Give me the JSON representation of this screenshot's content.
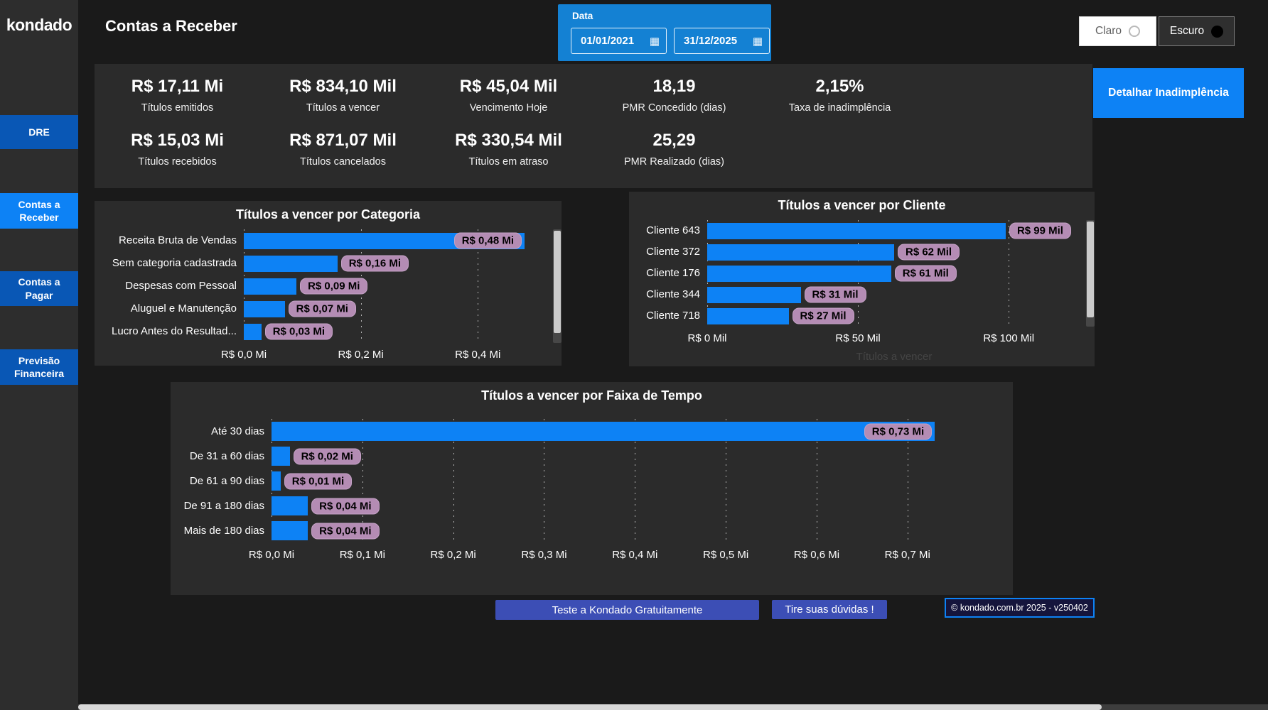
{
  "colors": {
    "accent": "#0d82f5",
    "navblue": "#0957b5",
    "slicerblue": "#1481d3",
    "pill": "#b48cb4",
    "indigo": "#3c4eb5"
  },
  "sidebar": {
    "logo": "kondado",
    "items": [
      {
        "label": "DRE",
        "active": false
      },
      {
        "label": "Contas a Receber",
        "active": true
      },
      {
        "label": "Contas a Pagar",
        "active": false
      },
      {
        "label": "Previsão Financeira",
        "active": false
      }
    ]
  },
  "header": {
    "title": "Contas a Receber",
    "date_slicer": {
      "label": "Data",
      "start": "01/01/2021",
      "end": "31/12/2025",
      "calendar_icon": "▦"
    },
    "theme_toggle": {
      "light": "Claro",
      "dark": "Escuro"
    }
  },
  "kpis": {
    "row1": [
      {
        "value": "R$ 17,11 Mi",
        "label": "Títulos emitidos"
      },
      {
        "value": "R$ 834,10 Mil",
        "label": "Títulos a vencer"
      },
      {
        "value": "R$ 45,04 Mil",
        "label": "Vencimento Hoje"
      },
      {
        "value": "18,19",
        "label": "PMR Concedido (dias)"
      },
      {
        "value": "2,15%",
        "label": "Taxa de inadimplência"
      }
    ],
    "row2": [
      {
        "value": "R$ 15,03 Mi",
        "label": "Títulos recebidos"
      },
      {
        "value": "R$ 871,07 Mil",
        "label": "Títulos cancelados"
      },
      {
        "value": "R$ 330,54 Mil",
        "label": "Títulos em atraso"
      },
      {
        "value": "25,29",
        "label": "PMR Realizado (dias)"
      }
    ],
    "detail_button": "Detalhar Inadimplência"
  },
  "chart_data": [
    {
      "type": "bar",
      "orientation": "horizontal",
      "title": "Títulos a vencer por Categoria",
      "categories": [
        "Receita Bruta de Vendas",
        "Sem categoria cadastrada",
        "Despesas com Pessoal",
        "Aluguel e Manutenção",
        "Lucro Antes do Resultad..."
      ],
      "values": [
        0.48,
        0.16,
        0.09,
        0.07,
        0.03
      ],
      "value_labels": [
        "R$ 0,48 Mi",
        "R$ 0,16 Mi",
        "R$ 0,09 Mi",
        "R$ 0,07 Mi",
        "R$ 0,03 Mi"
      ],
      "unit": "Mi",
      "x_ticks": [
        {
          "value": 0.0,
          "label": "R$ 0,0 Mi"
        },
        {
          "value": 0.2,
          "label": "R$ 0,2 Mi"
        },
        {
          "value": 0.4,
          "label": "R$ 0,4 Mi"
        }
      ],
      "axis_max": 0.52,
      "grid": true,
      "has_scrollbar": true
    },
    {
      "type": "bar",
      "orientation": "horizontal",
      "title": "Títulos a vencer por Cliente",
      "categories": [
        "Cliente 643",
        "Cliente 372",
        "Cliente 176",
        "Cliente 344",
        "Cliente 718"
      ],
      "values": [
        99,
        62,
        61,
        31,
        27
      ],
      "value_labels": [
        "R$ 99 Mil",
        "R$ 62 Mil",
        "R$ 61 Mil",
        "R$ 31 Mil",
        "R$ 27 Mil"
      ],
      "unit": "Mil",
      "x_ticks": [
        {
          "value": 0,
          "label": "R$ 0 Mil"
        },
        {
          "value": 50,
          "label": "R$ 50 Mil"
        },
        {
          "value": 100,
          "label": "R$ 100 Mil"
        }
      ],
      "axis_max": 124,
      "axis_title": "Títulos a vencer",
      "grid": true,
      "has_scrollbar": true
    },
    {
      "type": "bar",
      "orientation": "horizontal",
      "title": "Títulos a vencer por Faixa de Tempo",
      "categories": [
        "Até 30 dias",
        "De 31 a 60 dias",
        "De 61 a 90 dias",
        "De 91 a 180 dias",
        "Mais de 180 dias"
      ],
      "values": [
        0.73,
        0.02,
        0.01,
        0.04,
        0.04
      ],
      "value_labels": [
        "R$ 0,73 Mi",
        "R$ 0,02 Mi",
        "R$ 0,01 Mi",
        "R$ 0,04 Mi",
        "R$ 0,04 Mi"
      ],
      "unit": "Mi",
      "x_ticks": [
        {
          "value": 0.0,
          "label": "R$ 0,0 Mi"
        },
        {
          "value": 0.1,
          "label": "R$ 0,1 Mi"
        },
        {
          "value": 0.2,
          "label": "R$ 0,2 Mi"
        },
        {
          "value": 0.3,
          "label": "R$ 0,3 Mi"
        },
        {
          "value": 0.4,
          "label": "R$ 0,4 Mi"
        },
        {
          "value": 0.5,
          "label": "R$ 0,5 Mi"
        },
        {
          "value": 0.6,
          "label": "R$ 0,6 Mi"
        },
        {
          "value": 0.7,
          "label": "R$ 0,7 Mi"
        }
      ],
      "axis_max": 0.805,
      "grid": true,
      "has_scrollbar": false
    }
  ],
  "footer": {
    "test_button": "Teste a Kondado Gratuitamente",
    "doubts_button": "Tire suas dúvidas !",
    "version": "© kondado.com.br 2025 - v250402"
  }
}
